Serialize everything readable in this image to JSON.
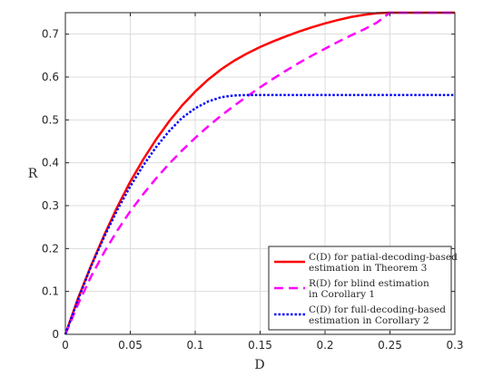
{
  "chart_data": {
    "type": "line",
    "title": "",
    "xlabel": "D",
    "ylabel": "R",
    "xlim": [
      0,
      0.3
    ],
    "ylim": [
      0,
      0.75
    ],
    "xticks": [
      0,
      0.05,
      0.1,
      0.15,
      0.2,
      0.25,
      0.3
    ],
    "xtick_labels": [
      "0",
      "0.05",
      "0.1",
      "0.15",
      "0.2",
      "0.25",
      "0.3"
    ],
    "yticks": [
      0,
      0.1,
      0.2,
      0.3,
      0.4,
      0.5,
      0.6,
      0.7
    ],
    "ytick_labels": [
      "0",
      "0.1",
      "0.2",
      "0.3",
      "0.4",
      "0.5",
      "0.6",
      "0.7"
    ],
    "grid": true,
    "legend_position": "bottom-right",
    "series": [
      {
        "name": "C(D) for patial-decoding-based estimation in Theorem 3",
        "legend_lines": [
          "C(D) for patial-decoding-based",
          "estimation in Theorem 3"
        ],
        "color": "#ff0000",
        "style": "solid",
        "x": [
          0,
          0.01,
          0.02,
          0.03,
          0.04,
          0.05,
          0.06,
          0.07,
          0.08,
          0.09,
          0.1,
          0.11,
          0.12,
          0.13,
          0.14,
          0.15,
          0.16,
          0.17,
          0.18,
          0.19,
          0.2,
          0.21,
          0.22,
          0.23,
          0.24,
          0.25,
          0.26,
          0.27,
          0.28,
          0.29,
          0.3
        ],
        "y": [
          0,
          0.086,
          0.162,
          0.232,
          0.297,
          0.356,
          0.408,
          0.455,
          0.497,
          0.534,
          0.566,
          0.594,
          0.618,
          0.638,
          0.655,
          0.67,
          0.683,
          0.695,
          0.706,
          0.716,
          0.725,
          0.733,
          0.74,
          0.745,
          0.749,
          0.75,
          0.75,
          0.75,
          0.75,
          0.75,
          0.75
        ]
      },
      {
        "name": "R(D) for blind estimation in Corollary 1",
        "legend_lines": [
          "R(D) for blind estimation",
          "in Corollary 1"
        ],
        "color": "#ff00ff",
        "style": "dashed",
        "x": [
          0,
          0.01,
          0.02,
          0.03,
          0.04,
          0.05,
          0.06,
          0.07,
          0.08,
          0.09,
          0.1,
          0.11,
          0.12,
          0.13,
          0.14,
          0.15,
          0.16,
          0.17,
          0.18,
          0.19,
          0.2,
          0.21,
          0.22,
          0.23,
          0.24,
          0.25,
          0.26,
          0.27,
          0.28,
          0.29,
          0.3
        ],
        "y": [
          0,
          0.072,
          0.136,
          0.192,
          0.242,
          0.287,
          0.327,
          0.364,
          0.398,
          0.429,
          0.458,
          0.485,
          0.51,
          0.533,
          0.555,
          0.576,
          0.596,
          0.615,
          0.633,
          0.65,
          0.666,
          0.682,
          0.697,
          0.711,
          0.727,
          0.75,
          0.75,
          0.75,
          0.75,
          0.75,
          0.75
        ]
      },
      {
        "name": "C(D) for full-decoding-based estimation in Corollary 2",
        "legend_lines": [
          "C(D) for full-decoding-based",
          "estimation in Corollary 2"
        ],
        "color": "#0000ff",
        "style": "dotted",
        "x": [
          0,
          0.01,
          0.02,
          0.03,
          0.04,
          0.05,
          0.06,
          0.07,
          0.08,
          0.09,
          0.1,
          0.11,
          0.12,
          0.13,
          0.14,
          0.15,
          0.2,
          0.25,
          0.3
        ],
        "y": [
          0,
          0.083,
          0.16,
          0.228,
          0.29,
          0.345,
          0.394,
          0.437,
          0.474,
          0.505,
          0.527,
          0.543,
          0.553,
          0.557,
          0.558,
          0.558,
          0.558,
          0.558,
          0.558
        ]
      }
    ]
  }
}
